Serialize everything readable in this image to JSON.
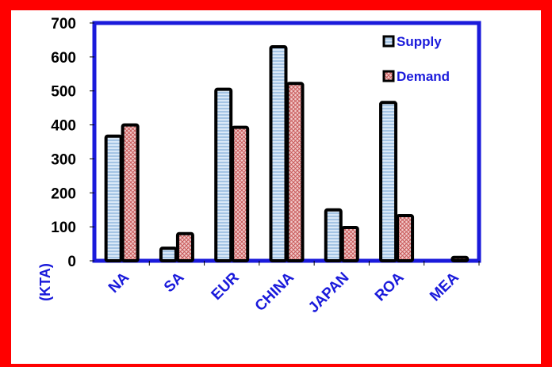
{
  "chart_data": {
    "type": "bar",
    "categories": [
      "NA",
      "SA",
      "EUR",
      "CHINA",
      "JAPAN",
      "ROA",
      "MEA"
    ],
    "series": [
      {
        "name": "Supply",
        "values": [
          367,
          37,
          505,
          630,
          150,
          466,
          0
        ]
      },
      {
        "name": "Demand",
        "values": [
          400,
          80,
          393,
          522,
          98,
          133,
          10
        ]
      }
    ],
    "ylabel": "(KTA)",
    "ylim": [
      0,
      700
    ],
    "yticks": [
      0,
      100,
      200,
      300,
      400,
      500,
      600,
      700
    ],
    "legend": "top-right",
    "grid": false,
    "colors": {
      "frame": "#ff0000",
      "plot_border": "#1a1adb",
      "axis_text": "#1a1adb",
      "supply_fill": "#bcd6ef",
      "demand_fill": "#e8a6a6",
      "bar_outline": "#000000"
    }
  }
}
